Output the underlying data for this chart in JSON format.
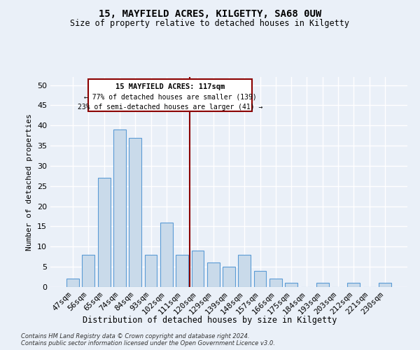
{
  "title": "15, MAYFIELD ACRES, KILGETTY, SA68 0UW",
  "subtitle": "Size of property relative to detached houses in Kilgetty",
  "xlabel": "Distribution of detached houses by size in Kilgetty",
  "ylabel": "Number of detached properties",
  "categories": [
    "47sqm",
    "56sqm",
    "65sqm",
    "74sqm",
    "84sqm",
    "93sqm",
    "102sqm",
    "111sqm",
    "120sqm",
    "129sqm",
    "139sqm",
    "148sqm",
    "157sqm",
    "166sqm",
    "175sqm",
    "184sqm",
    "193sqm",
    "203sqm",
    "212sqm",
    "221sqm",
    "230sqm"
  ],
  "values": [
    2,
    8,
    27,
    39,
    37,
    8,
    16,
    8,
    9,
    6,
    5,
    8,
    4,
    2,
    1,
    0,
    1,
    0,
    1,
    0,
    1
  ],
  "bar_color": "#c9daea",
  "bar_edge_color": "#5b9bd5",
  "bar_width": 0.8,
  "ylim": [
    0,
    52
  ],
  "yticks": [
    0,
    5,
    10,
    15,
    20,
    25,
    30,
    35,
    40,
    45,
    50
  ],
  "property_label": "15 MAYFIELD ACRES: 117sqm",
  "pct_smaller": "← 77% of detached houses are smaller (139)",
  "pct_larger": "23% of semi-detached houses are larger (41) →",
  "vline_x": 7.5,
  "background_color": "#eaf0f8",
  "grid_color": "#ffffff",
  "footer_line1": "Contains HM Land Registry data © Crown copyright and database right 2024.",
  "footer_line2": "Contains public sector information licensed under the Open Government Licence v3.0."
}
